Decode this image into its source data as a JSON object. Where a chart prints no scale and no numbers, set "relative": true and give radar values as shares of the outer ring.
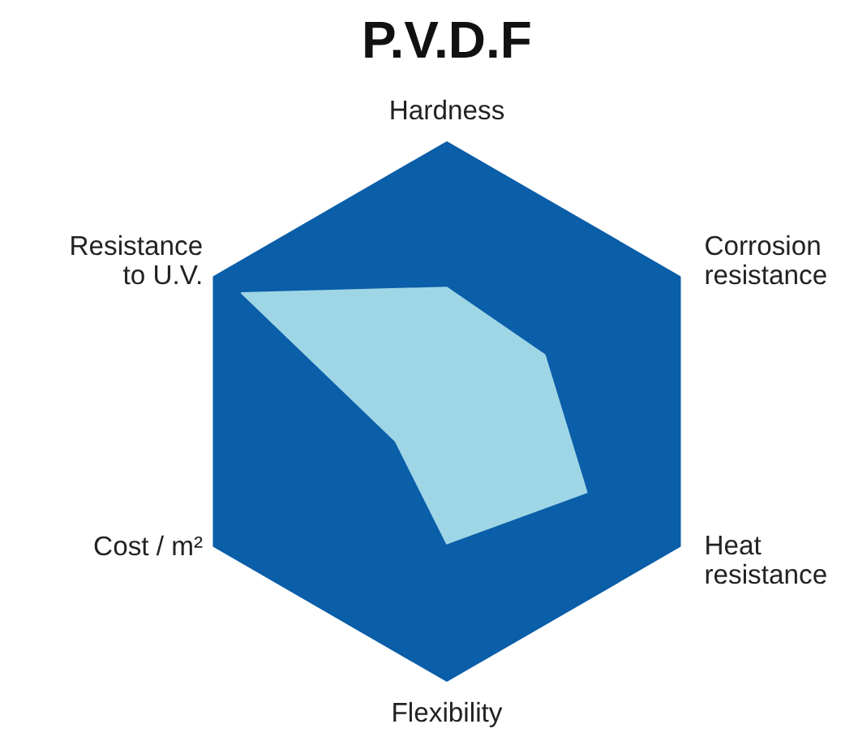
{
  "chart_data": {
    "type": "radar",
    "title": "P.V.D.F",
    "relative": true,
    "categories": [
      "Hardness",
      "Corrosion\nresistance",
      "Heat\nresistance",
      "Flexibility",
      "Cost / m²",
      "Resistance\nto U.V."
    ],
    "series": [
      {
        "color": "#9fd6e6",
        "values": [
          0.46,
          0.42,
          0.6,
          0.49,
          0.22,
          0.88
        ]
      }
    ],
    "grid": true
  }
}
